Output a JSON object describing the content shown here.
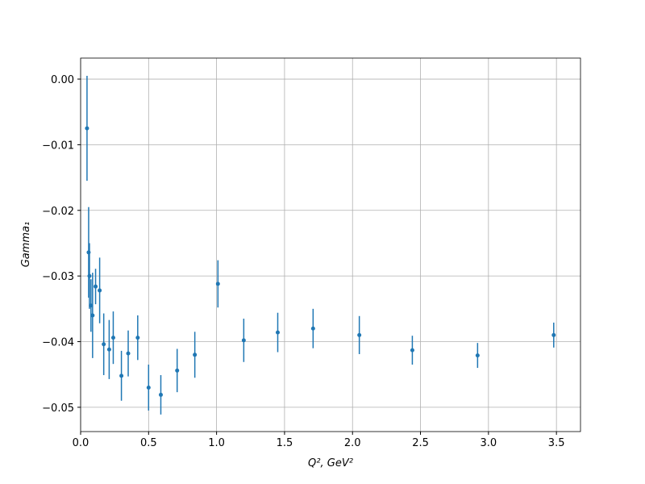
{
  "chart_data": {
    "type": "errorbar",
    "xlabel": "Q², GeV²",
    "ylabel": "Gamma₁",
    "series": [
      {
        "color": "#1f77b4",
        "x": [
          0.047,
          0.059,
          0.065,
          0.076,
          0.088,
          0.11,
          0.14,
          0.17,
          0.21,
          0.24,
          0.3,
          0.35,
          0.42,
          0.5,
          0.59,
          0.71,
          0.84,
          1.01,
          1.2,
          1.45,
          1.71,
          2.05,
          2.44,
          2.92,
          3.48
        ],
        "values": [
          -0.0075,
          -0.0264,
          -0.03,
          -0.0345,
          -0.036,
          -0.0316,
          -0.0322,
          -0.0404,
          -0.0412,
          -0.0394,
          -0.0452,
          -0.0418,
          -0.0394,
          -0.047,
          -0.0481,
          -0.0444,
          -0.042,
          -0.0312,
          -0.0398,
          -0.0386,
          -0.038,
          -0.039,
          -0.0413,
          -0.0421,
          -0.039
        ],
        "errors": [
          0.008,
          0.0069,
          0.005,
          0.004,
          0.0065,
          0.0027,
          0.005,
          0.0047,
          0.0045,
          0.004,
          0.0038,
          0.0035,
          0.0034,
          0.0035,
          0.003,
          0.0033,
          0.0035,
          0.0036,
          0.0033,
          0.003,
          0.003,
          0.0029,
          0.0022,
          0.0019,
          0.0019
        ]
      }
    ],
    "xlim": [
      0,
      3.677
    ],
    "ylim": [
      -0.0537,
      0.0032
    ],
    "xticks": [
      {
        "value": 0,
        "label": "0.0"
      },
      0.5,
      {
        "value": 1,
        "label": "1.0"
      },
      1.5,
      {
        "value": 2,
        "label": "2.0"
      },
      2.5,
      {
        "value": 3,
        "label": "3.0"
      },
      3.5
    ],
    "yticks": [
      {
        "value": 0,
        "label": "0.00"
      },
      {
        "value": -0.01,
        "label": "−0.01"
      },
      {
        "value": -0.02,
        "label": "−0.02"
      },
      {
        "value": -0.03,
        "label": "−0.03"
      },
      {
        "value": -0.04,
        "label": "−0.04"
      },
      {
        "value": -0.05,
        "label": "−0.05"
      }
    ],
    "grid": true
  }
}
